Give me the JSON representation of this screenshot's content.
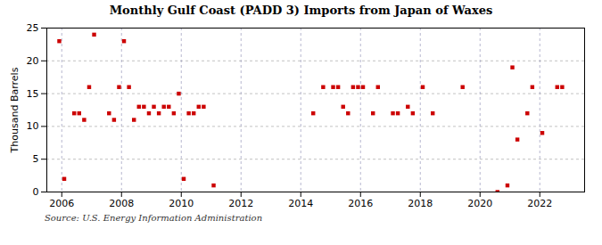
{
  "chart_data": {
    "type": "scatter",
    "title": "Monthly Gulf Coast (PADD 3) Imports from Japan of Waxes",
    "ylabel": "Thousand Barrels",
    "source": "Source: U.S. Energy Information Administration",
    "color": "#cc0000",
    "marker": "square",
    "grid": true,
    "xlim": [
      2005.5,
      2023.5
    ],
    "ylim": [
      0,
      25
    ],
    "xticks": [
      2006,
      2008,
      2010,
      2012,
      2014,
      2016,
      2018,
      2020,
      2022
    ],
    "yticks": [
      0,
      5,
      10,
      15,
      20,
      25
    ],
    "x": [
      2005.917,
      2006.083,
      2006.417,
      2006.583,
      2006.75,
      2006.917,
      2007.083,
      2007.583,
      2007.75,
      2007.917,
      2008.083,
      2008.25,
      2008.417,
      2008.583,
      2008.75,
      2008.917,
      2009.083,
      2009.25,
      2009.417,
      2009.583,
      2009.75,
      2009.917,
      2010.083,
      2010.25,
      2010.417,
      2010.583,
      2010.75,
      2011.083,
      2014.417,
      2014.75,
      2015.083,
      2015.25,
      2015.417,
      2015.583,
      2015.75,
      2015.917,
      2016.083,
      2016.417,
      2016.583,
      2017.083,
      2017.25,
      2017.583,
      2017.75,
      2018.083,
      2018.417,
      2019.417,
      2020.583,
      2020.917,
      2021.083,
      2021.25,
      2021.583,
      2021.75,
      2022.083,
      2022.583,
      2022.75
    ],
    "values": [
      23,
      2,
      12,
      12,
      11,
      16,
      24,
      12,
      11,
      16,
      23,
      16,
      11,
      13,
      13,
      12,
      13,
      12,
      13,
      13,
      12,
      15,
      2,
      12,
      12,
      13,
      13,
      1,
      12,
      16,
      16,
      16,
      13,
      12,
      16,
      16,
      16,
      12,
      16,
      12,
      12,
      13,
      12,
      16,
      12,
      16,
      0,
      1,
      19,
      8,
      12,
      16,
      9,
      16,
      16
    ]
  }
}
